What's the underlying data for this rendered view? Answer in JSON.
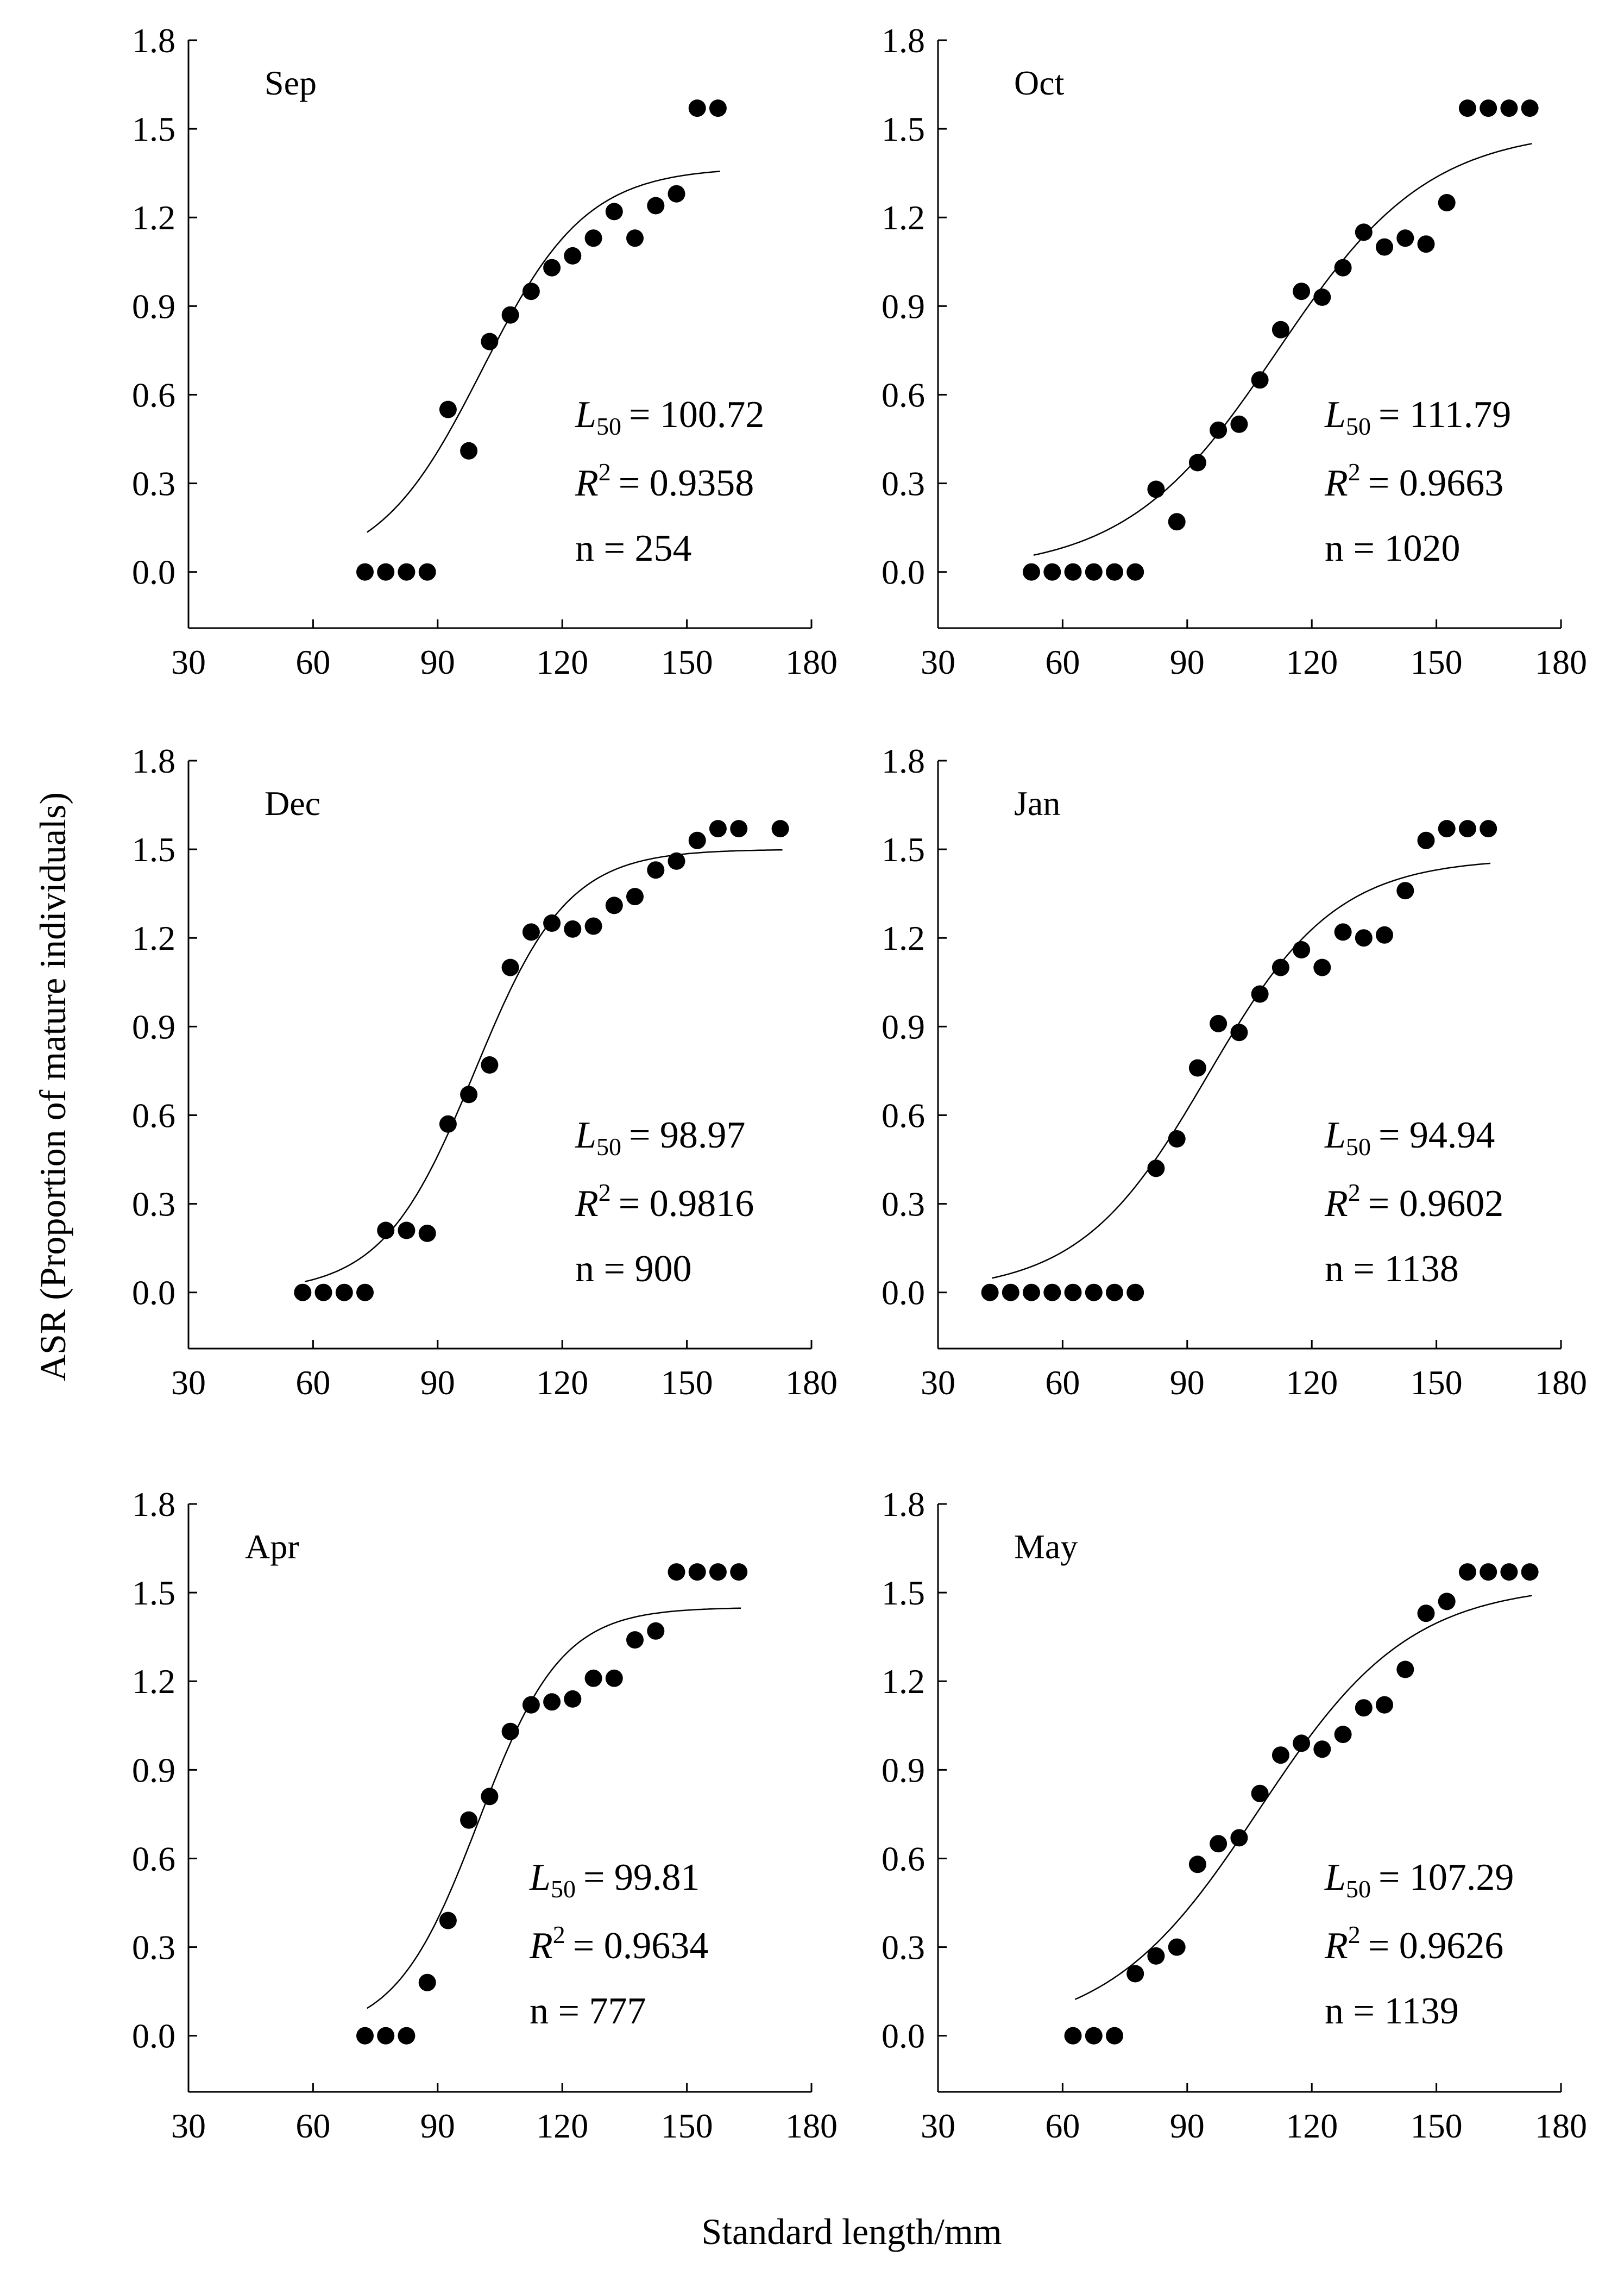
{
  "figure": {
    "ylabel": "ASR (Proportion of mature individuals)",
    "xlabel": "Standard length/mm",
    "colors": {
      "ink": "#000000",
      "background": "#ffffff"
    }
  },
  "chart_data": [
    {
      "type": "scatter",
      "title": "Sep",
      "xlabel": "Standard length/mm",
      "ylabel": "ASR (Proportion of mature individuals)",
      "xlim": [
        30,
        180
      ],
      "ylim": [
        -0.19,
        1.8
      ],
      "xticks": [
        "30",
        "60",
        "90",
        "120",
        "150",
        "180"
      ],
      "yticks": [
        "0.0",
        "0.3",
        "0.6",
        "0.9",
        "1.2",
        "1.5",
        "1.8"
      ],
      "x": [
        72.5,
        77.5,
        82.5,
        87.5,
        92.5,
        97.5,
        102.5,
        107.5,
        112.5,
        117.5,
        122.5,
        127.5,
        132.5,
        137.5,
        142.5,
        147.5,
        152.5,
        157.5
      ],
      "y": [
        0.0,
        0.0,
        0.0,
        0.0,
        0.55,
        0.41,
        0.78,
        0.87,
        0.95,
        1.03,
        1.07,
        1.13,
        1.22,
        1.13,
        1.24,
        1.28,
        1.57,
        1.57
      ],
      "fit": {
        "L50": 100.72,
        "max": 1.37,
        "k": 0.08,
        "xrange": [
          73,
          158
        ]
      },
      "stats": {
        "l50": "= 100.72",
        "r2": "= 0.9358",
        "n": "n = 254"
      }
    },
    {
      "type": "scatter",
      "title": "Oct",
      "xlabel": "Standard length/mm",
      "ylabel": "ASR (Proportion of mature individuals)",
      "xlim": [
        30,
        180
      ],
      "ylim": [
        -0.19,
        1.8
      ],
      "xticks": [
        "30",
        "60",
        "90",
        "120",
        "150",
        "180"
      ],
      "yticks": [
        "0.0",
        "0.3",
        "0.6",
        "0.9",
        "1.2",
        "1.5",
        "1.8"
      ],
      "x": [
        52.5,
        57.5,
        62.5,
        67.5,
        72.5,
        77.5,
        82.5,
        87.5,
        92.5,
        97.5,
        102.5,
        107.5,
        112.5,
        117.5,
        122.5,
        127.5,
        132.5,
        137.5,
        142.5,
        147.5,
        152.5,
        157.5,
        162.5,
        167.5,
        172.5
      ],
      "y": [
        0.0,
        0.0,
        0.0,
        0.0,
        0.0,
        0.0,
        0.28,
        0.17,
        0.37,
        0.48,
        0.5,
        0.65,
        0.82,
        0.95,
        0.93,
        1.03,
        1.15,
        1.1,
        1.13,
        1.11,
        1.25,
        1.57,
        1.57,
        1.57,
        1.57
      ],
      "fit": {
        "L50": 111.79,
        "max": 1.5,
        "k": 0.055,
        "xrange": [
          53,
          173
        ]
      },
      "stats": {
        "l50": "= 111.79",
        "r2": "= 0.9663",
        "n": "n = 1020"
      }
    },
    {
      "type": "scatter",
      "title": "Dec",
      "xlabel": "Standard length/mm",
      "ylabel": "ASR (Proportion of mature individuals)",
      "xlim": [
        30,
        180
      ],
      "ylim": [
        -0.19,
        1.8
      ],
      "xticks": [
        "30",
        "60",
        "90",
        "120",
        "150",
        "180"
      ],
      "yticks": [
        "0.0",
        "0.3",
        "0.6",
        "0.9",
        "1.2",
        "1.5",
        "1.8"
      ],
      "x": [
        57.5,
        62.5,
        67.5,
        72.5,
        77.5,
        82.5,
        87.5,
        92.5,
        97.5,
        102.5,
        107.5,
        112.5,
        117.5,
        122.5,
        127.5,
        132.5,
        137.5,
        142.5,
        147.5,
        152.5,
        157.5,
        162.5,
        172.5
      ],
      "y": [
        0.0,
        0.0,
        0.0,
        0.0,
        0.21,
        0.21,
        0.2,
        0.57,
        0.67,
        0.77,
        1.1,
        1.22,
        1.25,
        1.23,
        1.24,
        1.31,
        1.34,
        1.43,
        1.46,
        1.53,
        1.57,
        1.57,
        1.57
      ],
      "fit": {
        "L50": 98.97,
        "max": 1.5,
        "k": 0.09,
        "xrange": [
          58,
          173
        ]
      },
      "stats": {
        "l50": "= 98.97",
        "r2": "= 0.9816",
        "n": "n = 900"
      }
    },
    {
      "type": "scatter",
      "title": "Jan",
      "xlabel": "Standard length/mm",
      "ylabel": "ASR (Proportion of mature individuals)",
      "xlim": [
        30,
        180
      ],
      "ylim": [
        -0.19,
        1.8
      ],
      "xticks": [
        "30",
        "60",
        "90",
        "120",
        "150",
        "180"
      ],
      "yticks": [
        "0.0",
        "0.3",
        "0.6",
        "0.9",
        "1.2",
        "1.5",
        "1.8"
      ],
      "x": [
        42.5,
        47.5,
        52.5,
        57.5,
        62.5,
        67.5,
        72.5,
        77.5,
        82.5,
        87.5,
        92.5,
        97.5,
        102.5,
        107.5,
        112.5,
        117.5,
        122.5,
        127.5,
        132.5,
        137.5,
        142.5,
        147.5,
        152.5,
        157.5,
        162.5
      ],
      "y": [
        0.0,
        0.0,
        0.0,
        0.0,
        0.0,
        0.0,
        0.0,
        0.0,
        0.42,
        0.52,
        0.76,
        0.91,
        0.88,
        1.01,
        1.1,
        1.16,
        1.1,
        1.22,
        1.2,
        1.21,
        1.36,
        1.53,
        1.57,
        1.57,
        1.57
      ],
      "fit": {
        "L50": 94.94,
        "max": 1.47,
        "k": 0.065,
        "xrange": [
          43,
          163
        ]
      },
      "stats": {
        "l50": "= 94.94",
        "r2": "= 0.9602",
        "n": "n = 1138"
      }
    },
    {
      "type": "scatter",
      "title": "Apr",
      "xlabel": "Standard length/mm",
      "ylabel": "ASR (Proportion of mature individuals)",
      "xlim": [
        30,
        180
      ],
      "ylim": [
        -0.19,
        1.8
      ],
      "xticks": [
        "30",
        "60",
        "90",
        "120",
        "150",
        "180"
      ],
      "yticks": [
        "0.0",
        "0.3",
        "0.6",
        "0.9",
        "1.2",
        "1.5",
        "1.8"
      ],
      "x": [
        72.5,
        77.5,
        82.5,
        87.5,
        92.5,
        97.5,
        102.5,
        107.5,
        112.5,
        117.5,
        122.5,
        127.5,
        132.5,
        137.5,
        142.5,
        147.5,
        152.5,
        157.5,
        162.5
      ],
      "y": [
        0.0,
        0.0,
        0.0,
        0.18,
        0.39,
        0.73,
        0.81,
        1.03,
        1.12,
        1.13,
        1.14,
        1.21,
        1.21,
        1.34,
        1.37,
        1.57,
        1.57,
        1.57,
        1.57
      ],
      "fit": {
        "L50": 99.81,
        "max": 1.45,
        "k": 0.1,
        "xrange": [
          73,
          163
        ]
      },
      "stats": {
        "l50": "= 99.81",
        "r2": "= 0.9634",
        "n": "n = 777"
      }
    },
    {
      "type": "scatter",
      "title": "May",
      "xlabel": "Standard length/mm",
      "ylabel": "ASR (Proportion of mature individuals)",
      "xlim": [
        30,
        180
      ],
      "ylim": [
        -0.19,
        1.8
      ],
      "xticks": [
        "30",
        "60",
        "90",
        "120",
        "150",
        "180"
      ],
      "yticks": [
        "0.0",
        "0.3",
        "0.6",
        "0.9",
        "1.2",
        "1.5",
        "1.8"
      ],
      "x": [
        62.5,
        67.5,
        72.5,
        77.5,
        82.5,
        87.5,
        92.5,
        97.5,
        102.5,
        107.5,
        112.5,
        117.5,
        122.5,
        127.5,
        132.5,
        137.5,
        142.5,
        147.5,
        152.5,
        157.5,
        162.5,
        167.5,
        172.5
      ],
      "y": [
        0.0,
        0.0,
        0.0,
        0.21,
        0.27,
        0.3,
        0.58,
        0.65,
        0.67,
        0.82,
        0.95,
        0.99,
        0.97,
        1.02,
        1.11,
        1.12,
        1.24,
        1.43,
        1.47,
        1.57,
        1.57,
        1.57,
        1.57
      ],
      "fit": {
        "L50": 107.29,
        "max": 1.53,
        "k": 0.055,
        "xrange": [
          63,
          173
        ]
      },
      "stats": {
        "l50": "= 107.29",
        "r2": "= 0.9626",
        "n": "n = 1139"
      }
    }
  ]
}
